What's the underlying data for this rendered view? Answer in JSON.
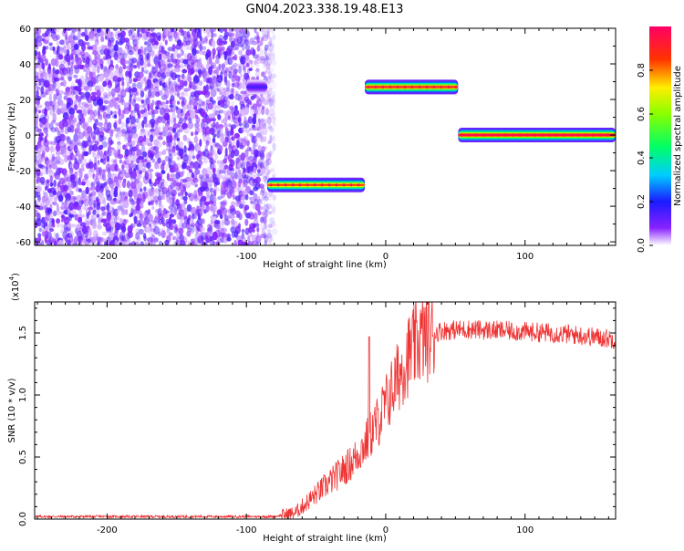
{
  "title": "GN04.2023.338.19.48.E13",
  "colors": {
    "snr_line": "#ee3333",
    "axis": "#000000",
    "background": "#ffffff"
  },
  "chart_data": [
    {
      "type": "heatmap",
      "xlabel": "Height of straight line (km)",
      "ylabel": "Frequency (Hz)",
      "xlim": [
        -252,
        165
      ],
      "ylim": [
        -62,
        60
      ],
      "xticks": [
        -200,
        -100,
        0,
        100
      ],
      "yticks": [
        -60,
        -40,
        -20,
        0,
        20,
        40,
        60
      ],
      "colorbar": {
        "label": "Normalized spectral amplitude",
        "range": [
          0,
          1
        ],
        "ticks": [
          0.0,
          0.2,
          0.4,
          0.6,
          0.8
        ]
      },
      "noise_region": {
        "x": [
          -252,
          -80
        ],
        "freq": [
          -62,
          60
        ],
        "amplitude_range": [
          0.02,
          0.15
        ]
      },
      "segments": [
        {
          "x": [
            -100,
            -85
          ],
          "freq": 27,
          "peak": 0.15
        },
        {
          "x": [
            -85,
            -15
          ],
          "freq": -28,
          "peak": 0.85
        },
        {
          "x": [
            -15,
            52
          ],
          "freq": 27,
          "peak": 0.9
        },
        {
          "x": [
            52,
            165
          ],
          "freq": 0,
          "peak": 0.95
        }
      ]
    },
    {
      "type": "line",
      "xlabel": "Height of straight line (km)",
      "ylabel": "SNR (10 * v/v)",
      "y_scale_label": "(x10",
      "y_scale_exponent": "4",
      "y_scale_suffix": ")",
      "xlim": [
        -252,
        165
      ],
      "ylim": [
        0,
        1.75
      ],
      "xticks": [
        -200,
        -100,
        0,
        100
      ],
      "yticks": [
        0.0,
        0.5,
        1.0,
        1.5
      ],
      "ytick_labels": [
        "0.0",
        "0.5",
        "1.0",
        "1.5"
      ],
      "series": [
        {
          "x": [
            -252,
            -200,
            -150,
            -100,
            -80,
            -65,
            -55,
            -45,
            -35,
            -25,
            -15,
            -5,
            5,
            15,
            25,
            40,
            60,
            80,
            100,
            120,
            140,
            165
          ],
          "y": [
            0.02,
            0.02,
            0.02,
            0.02,
            0.02,
            0.05,
            0.15,
            0.25,
            0.35,
            0.45,
            0.6,
            0.8,
            1.05,
            1.3,
            1.45,
            1.52,
            1.53,
            1.52,
            1.51,
            1.5,
            1.48,
            1.45
          ],
          "spikes": [
            {
              "x": -12,
              "y": 1.47
            }
          ]
        }
      ]
    }
  ]
}
